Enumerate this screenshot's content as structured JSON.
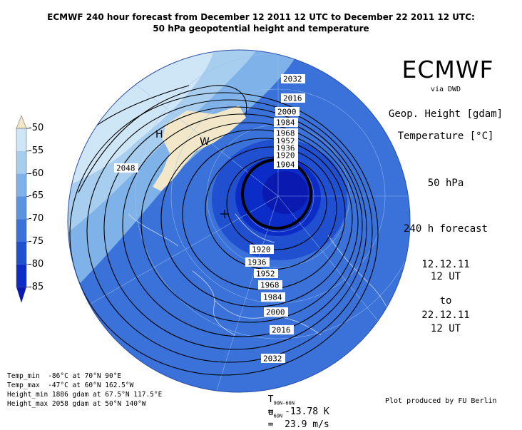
{
  "title": {
    "line1": "ECMWF 240 hour forecast from December 12 2011 12 UTC to December 22 2011 12 UTC:",
    "line2": "50 hPa geopotential height and temperature"
  },
  "right_panel": {
    "logo": "ECMWF",
    "via": "via DWD",
    "geop": "Geop. Height [gdam]",
    "temp": "Temperature [°C]",
    "level": "50 hPa",
    "forecast": "240 h forecast",
    "date_from": "12.12.11",
    "time_from": "12 UT",
    "to": "to",
    "date_to": "22.12.11",
    "time_to": "12 UT"
  },
  "colorbar": {
    "ticks": [
      "-50",
      "-55",
      "-60",
      "-65",
      "-70",
      "-75",
      "-80",
      "-85"
    ],
    "colors": [
      "#f2e7c9",
      "#cfe6f7",
      "#a7cdef",
      "#7fb2e8",
      "#5b93e0",
      "#3a72d9",
      "#2050d0",
      "#0c2cc8",
      "#0a1ab0"
    ]
  },
  "map": {
    "contour_labels": [
      "2032",
      "2016",
      "2000",
      "1984",
      "1968",
      "1952",
      "1936",
      "1920",
      "1904",
      "2048",
      "1920",
      "1936",
      "1952",
      "1968",
      "1984",
      "2000",
      "2016",
      "2032"
    ],
    "high_label": "H",
    "warm_label": "W"
  },
  "stats": {
    "temp_min": "Temp_min  -86°C at 70°N 90°E",
    "temp_max": "Temp_max  -47°C at 60°N 162.5°W",
    "height_min": "Height_min 1886 gdam at 67.5°N 117.5°E",
    "height_max": "Height_max 2058 gdam at 50°N 140°W"
  },
  "bottom": {
    "t_label": "T",
    "t_sub": "90N-60N",
    "t_value": "=  -13.78 K",
    "u_label": "u",
    "u_sub": "60N",
    "u_value": "=  23.9 m/s",
    "credit": "Plot produced by FU Berlin"
  }
}
